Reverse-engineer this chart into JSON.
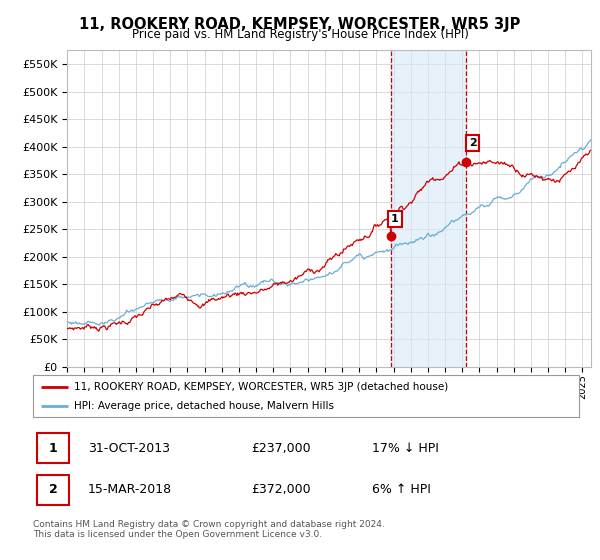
{
  "title": "11, ROOKERY ROAD, KEMPSEY, WORCESTER, WR5 3JP",
  "subtitle": "Price paid vs. HM Land Registry's House Price Index (HPI)",
  "ylabel_ticks": [
    "£0",
    "£50K",
    "£100K",
    "£150K",
    "£200K",
    "£250K",
    "£300K",
    "£350K",
    "£400K",
    "£450K",
    "£500K",
    "£550K"
  ],
  "ytick_values": [
    0,
    50000,
    100000,
    150000,
    200000,
    250000,
    300000,
    350000,
    400000,
    450000,
    500000,
    550000
  ],
  "ylim": [
    0,
    575000
  ],
  "xlim_start": 1995.0,
  "xlim_end": 2025.5,
  "transaction1_x": 2013.83,
  "transaction1_y": 237000,
  "transaction2_x": 2018.21,
  "transaction2_y": 372000,
  "transaction1_label": "1",
  "transaction2_label": "2",
  "shade_color": "#d6e8f7",
  "vline_color": "#cc0000",
  "legend_entry1": "11, ROOKERY ROAD, KEMPSEY, WORCESTER, WR5 3JP (detached house)",
  "legend_entry2": "HPI: Average price, detached house, Malvern Hills",
  "annotation1_num": "1",
  "annotation1_date": "31-OCT-2013",
  "annotation1_price": "£237,000",
  "annotation1_hpi": "17% ↓ HPI",
  "annotation2_num": "2",
  "annotation2_date": "15-MAR-2018",
  "annotation2_price": "£372,000",
  "annotation2_hpi": "6% ↑ HPI",
  "footer": "Contains HM Land Registry data © Crown copyright and database right 2024.\nThis data is licensed under the Open Government Licence v3.0.",
  "hpi_color": "#6baed6",
  "price_color": "#cc0000",
  "background_color": "#ffffff",
  "grid_color": "#cccccc"
}
